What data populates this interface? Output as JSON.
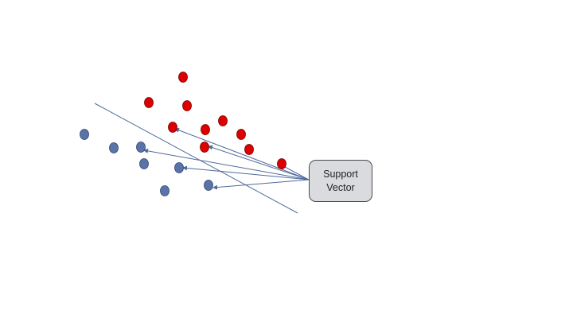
{
  "diagram": {
    "label": {
      "line1": "Support",
      "line2": "Vector"
    },
    "colors": {
      "class_a": "#dd0000",
      "class_a_stroke": "#7a0000",
      "class_b": "#5b74a8",
      "class_b_stroke": "#2e4470",
      "line": "#4f6b9a",
      "box_fill": "#d9dbde",
      "box_border": "#4a4a4a"
    },
    "red_point_count": 11,
    "blue_point_count": 8,
    "support_vector_arrow_count": 6
  }
}
